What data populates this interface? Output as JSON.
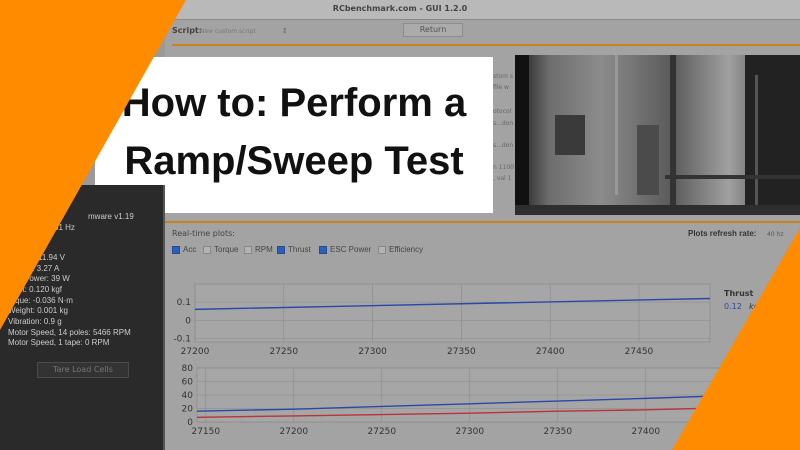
{
  "window": {
    "title": "RCbenchmark.com - GUI 1.2.0"
  },
  "toolbar": {
    "script_label": "Script:",
    "script_value": "New custom script",
    "script_arrow": "↕",
    "return_label": "Return"
  },
  "background_fragments": [
    "stom s",
    "file w",
    "otocol",
    "s...don",
    "s...don",
    "n 1100",
    ", val 1"
  ],
  "sidebar": {
    "lines": [
      "mware v1.19",
      "31 Hz",
      "11.94 V",
      "t: 3.27 A",
      "Power: 39 W",
      "ust: 0.120 kgf",
      "orque: -0.036 N·m",
      "Weight: 0.001 kg",
      "Vibration: 0.9 g",
      "Motor Speed, 14 poles: 5466 RPM",
      "Motor Speed, 1 tape: 0 RPM"
    ],
    "tare_label": "Tare Load Cells"
  },
  "title_card": {
    "line1": "How to: Perform a",
    "line2": "Ramp/Sweep Test"
  },
  "plots": {
    "title": "Real-time plots:",
    "refresh_label": "Plots refresh rate:",
    "refresh_value": "40 hz",
    "checkboxes": [
      {
        "label": "Acc",
        "checked": true
      },
      {
        "label": "Torque",
        "checked": false
      },
      {
        "label": "RPM",
        "checked": false
      },
      {
        "label": "Thrust",
        "checked": true
      },
      {
        "label": "ESC Power",
        "checked": true
      },
      {
        "label": "Efficiency",
        "checked": false
      }
    ],
    "thrust_plot": {
      "legend": "Thrust",
      "value": "0.12",
      "unit": "kgf",
      "y_ticks": [
        "0.1",
        "0",
        "-0.1"
      ],
      "x_ticks": [
        "27200",
        "27250",
        "27300",
        "27350",
        "27400",
        "27450"
      ],
      "xlim": [
        27200,
        27490
      ],
      "ylim": [
        -0.12,
        0.2
      ],
      "series": [
        {
          "color": "#2b47a8",
          "x": [
            27200,
            27490
          ],
          "y": [
            0.06,
            0.12
          ]
        }
      ]
    },
    "power_plot": {
      "y_ticks": [
        "80",
        "60",
        "40",
        "20",
        "0"
      ],
      "x_ticks": [
        "27150",
        "27200",
        "27250",
        "27300",
        "27350",
        "27400"
      ],
      "xlim": [
        27145,
        27445
      ],
      "ylim": [
        0,
        80
      ],
      "series": [
        {
          "color": "#2b47a8",
          "x": [
            27145,
            27200,
            27250,
            27300,
            27350,
            27400,
            27445
          ],
          "y": [
            16,
            19,
            23,
            27,
            31,
            35,
            39
          ]
        },
        {
          "color": "#b8333a",
          "x": [
            27145,
            27200,
            27250,
            27300,
            27350,
            27400,
            27445
          ],
          "y": [
            7,
            9,
            11,
            13,
            16,
            18,
            21
          ]
        }
      ]
    }
  },
  "colors": {
    "accent_orange": "#ff8c00",
    "rule_orange": "#c8811e"
  }
}
